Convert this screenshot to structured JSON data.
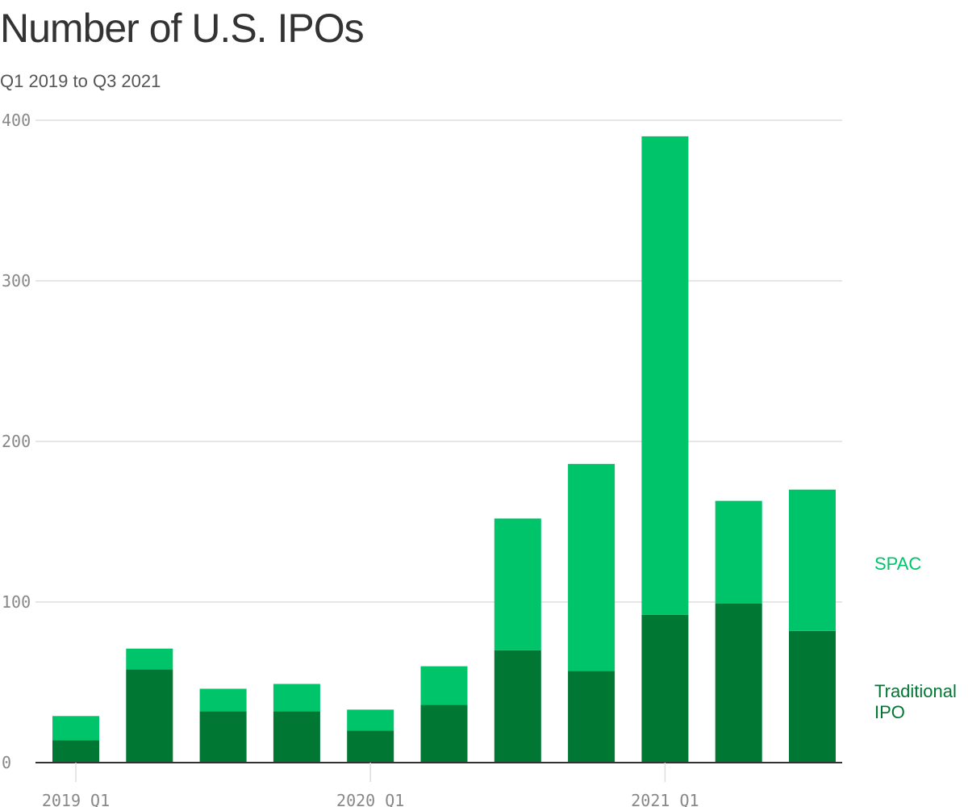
{
  "header": {
    "title": "Number of U.S. IPOs",
    "subtitle": "Q1 2019 to Q3 2021"
  },
  "colors": {
    "spac": "#00c46a",
    "traditional": "#007733",
    "grid": "#dddddd",
    "axis": "#333333",
    "tick_text": "#888888"
  },
  "chart_data": {
    "type": "bar",
    "stacked": true,
    "title": "Number of U.S. IPOs",
    "subtitle": "Q1 2019 to Q3 2021",
    "categories": [
      "2019 Q1",
      "2019 Q2",
      "2019 Q3",
      "2019 Q4",
      "2020 Q1",
      "2020 Q2",
      "2020 Q3",
      "2020 Q4",
      "2021 Q1",
      "2021 Q2",
      "2021 Q3"
    ],
    "x_tick_labels": [
      {
        "category": "2019 Q1",
        "label": "2019 Q1"
      },
      {
        "category": "2020 Q1",
        "label": "2020 Q1"
      },
      {
        "category": "2021 Q1",
        "label": "2021 Q1"
      }
    ],
    "series": [
      {
        "name": "Traditional IPO",
        "legend_lines": [
          "Traditional",
          "IPO"
        ],
        "color": "#007733",
        "values": [
          14,
          58,
          32,
          32,
          20,
          36,
          70,
          57,
          92,
          99,
          82
        ]
      },
      {
        "name": "SPAC",
        "legend_lines": [
          "SPAC"
        ],
        "color": "#00c46a",
        "values": [
          15,
          13,
          14,
          17,
          13,
          24,
          82,
          129,
          298,
          64,
          88
        ]
      }
    ],
    "ylim": [
      0,
      400
    ],
    "y_ticks": [
      0,
      100,
      200,
      300,
      400
    ],
    "grid": true,
    "legend": "right"
  }
}
